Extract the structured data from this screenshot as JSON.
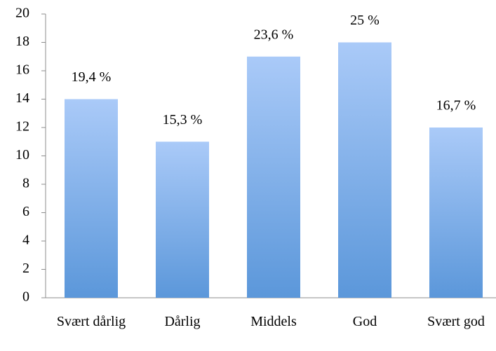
{
  "chart_data": {
    "type": "bar",
    "categories": [
      "Svært dårlig",
      "Dårlig",
      "Middels",
      "God",
      "Svært god"
    ],
    "values": [
      14,
      11,
      17,
      18,
      12
    ],
    "annotations": [
      "19,4 %",
      "15,3 %",
      "23,6 %",
      "25 %",
      "16,7 %"
    ],
    "color": "#5b97da",
    "ylim": [
      0,
      20
    ],
    "yticks": [
      0,
      2,
      4,
      6,
      8,
      10,
      12,
      14,
      16,
      18,
      20
    ],
    "grid": false
  }
}
